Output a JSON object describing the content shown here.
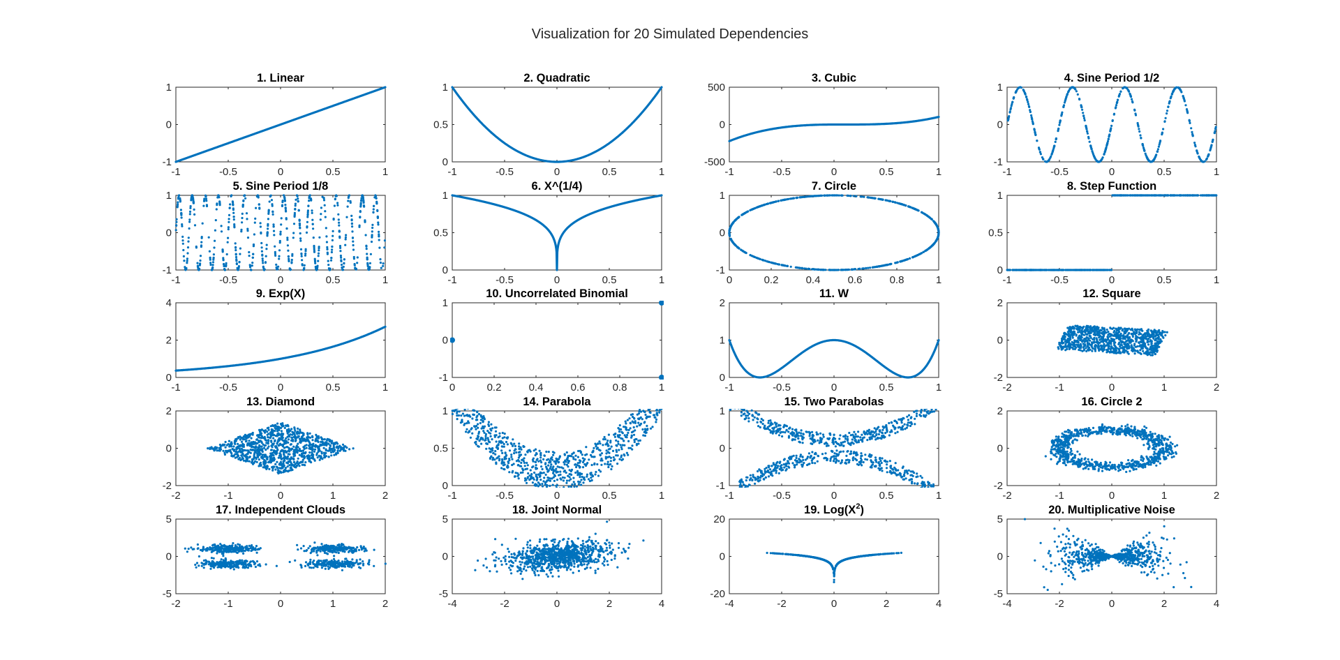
{
  "figure": {
    "title": "Visualization for 20 Simulated Dependencies",
    "series_color": "#0072BD"
  },
  "chart_data": [
    {
      "type": "line",
      "title": "1. Linear",
      "xlim": [
        -1,
        1
      ],
      "ylim": [
        -1,
        1
      ],
      "xticks": [
        -1,
        -0.5,
        0,
        0.5,
        1
      ],
      "yticks": [
        -1,
        0,
        1
      ],
      "xticklabels": [
        "-1",
        "-0.5",
        "0",
        "0.5",
        "1"
      ],
      "yticklabels": [
        "-1",
        "0",
        "1"
      ],
      "function": "y = x"
    },
    {
      "type": "line",
      "title": "2. Quadratic",
      "xlim": [
        -1,
        1
      ],
      "ylim": [
        0,
        1
      ],
      "xticks": [
        -1,
        -0.5,
        0,
        0.5,
        1
      ],
      "yticks": [
        0,
        0.5,
        1
      ],
      "xticklabels": [
        "-1",
        "-0.5",
        "0",
        "0.5",
        "1"
      ],
      "yticklabels": [
        "0",
        "0.5",
        "1"
      ],
      "function": "y = x^2"
    },
    {
      "type": "line",
      "title": "3. Cubic",
      "xlim": [
        -1,
        1
      ],
      "ylim": [
        -500,
        500
      ],
      "xticks": [
        -1,
        -0.5,
        0,
        0.5,
        1
      ],
      "yticks": [
        -500,
        0,
        500
      ],
      "xticklabels": [
        "-1",
        "-0.5",
        "0",
        "0.5",
        "1"
      ],
      "yticklabels": [
        "-500",
        "0",
        "500"
      ],
      "function": "cubic, y(-1) ≈ -200, y(1) ≈ 50"
    },
    {
      "type": "scatter",
      "title": "4. Sine Period 1/2",
      "xlim": [
        -1,
        1
      ],
      "ylim": [
        -1,
        1
      ],
      "xticks": [
        -1,
        -0.5,
        0,
        0.5,
        1
      ],
      "yticks": [
        -1,
        0,
        1
      ],
      "xticklabels": [
        "-1",
        "-0.5",
        "0",
        "0.5",
        "1"
      ],
      "yticklabels": [
        "-1",
        "0",
        "1"
      ],
      "function": "y = sin(4πx)"
    },
    {
      "type": "scatter",
      "title": "5. Sine Period 1/8",
      "xlim": [
        -1,
        1
      ],
      "ylim": [
        -1,
        1
      ],
      "xticks": [
        -1,
        -0.5,
        0,
        0.5,
        1
      ],
      "yticks": [
        -1,
        0,
        1
      ],
      "xticklabels": [
        "-1",
        "-0.5",
        "0",
        "0.5",
        "1"
      ],
      "yticklabels": [
        "-1",
        "0",
        "1"
      ],
      "function": "y = sin(16πx)"
    },
    {
      "type": "line",
      "title": "6. X^(1/4)",
      "xlim": [
        -1,
        1
      ],
      "ylim": [
        0,
        1
      ],
      "xticks": [
        -1,
        -0.5,
        0,
        0.5,
        1
      ],
      "yticks": [
        0,
        0.5,
        1
      ],
      "xticklabels": [
        "-1",
        "-0.5",
        "0",
        "0.5",
        "1"
      ],
      "yticklabels": [
        "0",
        "0.5",
        "1"
      ],
      "function": "y = |x|^(1/4)"
    },
    {
      "type": "scatter",
      "title": "7. Circle",
      "xlim": [
        0,
        1
      ],
      "ylim": [
        -1,
        1
      ],
      "xticks": [
        0,
        0.2,
        0.4,
        0.6,
        0.8,
        1
      ],
      "yticks": [
        -1,
        0,
        1
      ],
      "xticklabels": [
        "0",
        "0.2",
        "0.4",
        "0.6",
        "0.8",
        "1"
      ],
      "yticklabels": [
        "-1",
        "0",
        "1"
      ],
      "function": "ellipse centred (0.5, 0), radii 0.5 and 1"
    },
    {
      "type": "scatter",
      "title": "8. Step Function",
      "xlim": [
        -1,
        1
      ],
      "ylim": [
        0,
        1
      ],
      "xticks": [
        -1,
        -0.5,
        0,
        0.5,
        1
      ],
      "yticks": [
        0,
        0.5,
        1
      ],
      "xticklabels": [
        "-1",
        "-0.5",
        "0",
        "0.5",
        "1"
      ],
      "yticklabels": [
        "0",
        "0.5",
        "1"
      ],
      "function": "y = 0 for x < 0, y = 1 for x > 0"
    },
    {
      "type": "line",
      "title": "9. Exp(X)",
      "xlim": [
        -1,
        1
      ],
      "ylim": [
        0,
        4
      ],
      "xticks": [
        -1,
        -0.5,
        0,
        0.5,
        1
      ],
      "yticks": [
        0,
        2,
        4
      ],
      "xticklabels": [
        "-1",
        "-0.5",
        "0",
        "0.5",
        "1"
      ],
      "yticklabels": [
        "0",
        "2",
        "4"
      ],
      "function": "y = e^x"
    },
    {
      "type": "scatter",
      "title": "10. Uncorrelated Binomial",
      "xlim": [
        0,
        1
      ],
      "ylim": [
        -1,
        1
      ],
      "xticks": [
        0,
        0.2,
        0.4,
        0.6,
        0.8,
        1
      ],
      "yticks": [
        -1,
        0,
        1
      ],
      "xticklabels": [
        "0",
        "0.2",
        "0.4",
        "0.6",
        "0.8",
        "1"
      ],
      "yticklabels": [
        "-1",
        "0",
        "1"
      ],
      "points": [
        [
          0,
          0
        ],
        [
          1,
          1
        ],
        [
          1,
          -1
        ]
      ]
    },
    {
      "type": "line",
      "title": "11. W",
      "xlim": [
        -1,
        1
      ],
      "ylim": [
        0,
        2
      ],
      "xticks": [
        -1,
        -0.5,
        0,
        0.5,
        1
      ],
      "yticks": [
        0,
        1,
        2
      ],
      "xticklabels": [
        "-1",
        "-0.5",
        "0",
        "0.5",
        "1"
      ],
      "yticklabels": [
        "0",
        "1",
        "2"
      ],
      "function": "y = 4(x^2 - 0.5)^2"
    },
    {
      "type": "scatter",
      "title": "12. Square",
      "xlim": [
        -2,
        2
      ],
      "ylim": [
        -2,
        2
      ],
      "xticks": [
        -2,
        -1,
        0,
        1,
        2
      ],
      "yticks": [
        -2,
        0,
        2
      ],
      "xticklabels": [
        "-2",
        "-1",
        "0",
        "1",
        "2"
      ],
      "yticklabels": [
        "-2",
        "0",
        "2"
      ],
      "function": "uniform square rotated, approx. x∈[-1.3,1.3], y∈[-1.3,1.3]"
    },
    {
      "type": "scatter",
      "title": "13. Diamond",
      "xlim": [
        -2,
        2
      ],
      "ylim": [
        -2,
        2
      ],
      "xticks": [
        -2,
        -1,
        0,
        1,
        2
      ],
      "yticks": [
        -2,
        0,
        2
      ],
      "xticklabels": [
        "-2",
        "-1",
        "0",
        "1",
        "2"
      ],
      "yticklabels": [
        "-2",
        "0",
        "2"
      ],
      "function": "uniform diamond, |x|/1.4 + |y|/1.4 ≤ 1"
    },
    {
      "type": "scatter",
      "title": "14. Parabola",
      "xlim": [
        -1,
        1
      ],
      "ylim": [
        0,
        1
      ],
      "xticks": [
        -1,
        -0.5,
        0,
        0.5,
        1
      ],
      "yticks": [
        0,
        0.5,
        1
      ],
      "xticklabels": [
        "-1",
        "-0.5",
        "0",
        "0.5",
        "1"
      ],
      "yticklabels": [
        "0",
        "0.5",
        "1"
      ],
      "function": "y = x^2 + uniform noise"
    },
    {
      "type": "scatter",
      "title": "15. Two Parabolas",
      "xlim": [
        -1,
        1
      ],
      "ylim": [
        -1,
        1
      ],
      "xticks": [
        -1,
        -0.5,
        0,
        0.5,
        1
      ],
      "yticks": [
        -1,
        0,
        1
      ],
      "xticklabels": [
        "-1",
        "-0.5",
        "0",
        "0.5",
        "1"
      ],
      "yticklabels": [
        "-1",
        "0",
        "1"
      ],
      "function": "y = ±(x^2 + noise)"
    },
    {
      "type": "scatter",
      "title": "16. Circle 2",
      "xlim": [
        -2,
        2
      ],
      "ylim": [
        -2,
        2
      ],
      "xticks": [
        -2,
        -1,
        0,
        1,
        2
      ],
      "yticks": [
        -2,
        0,
        2
      ],
      "xticklabels": [
        "-2",
        "-1",
        "0",
        "1",
        "2"
      ],
      "yticklabels": [
        "-2",
        "0",
        "2"
      ],
      "function": "noisy circle, radius ≈ 1"
    },
    {
      "type": "scatter",
      "title": "17. Independent Clouds",
      "xlim": [
        -2,
        2
      ],
      "ylim": [
        -5,
        5
      ],
      "xticks": [
        -2,
        -1,
        0,
        1,
        2
      ],
      "yticks": [
        -5,
        0,
        5
      ],
      "xticklabels": [
        "-2",
        "-1",
        "0",
        "1",
        "2"
      ],
      "yticklabels": [
        "-5",
        "0",
        "5"
      ],
      "function": "four clusters at (±1, ±1)"
    },
    {
      "type": "scatter",
      "title": "18. Joint Normal",
      "xlim": [
        -4,
        4
      ],
      "ylim": [
        -5,
        5
      ],
      "xticks": [
        -4,
        -2,
        0,
        2,
        4
      ],
      "yticks": [
        -5,
        0,
        5
      ],
      "xticklabels": [
        "-4",
        "-2",
        "0",
        "2",
        "4"
      ],
      "yticklabels": [
        "-5",
        "0",
        "5"
      ],
      "function": "bivariate normal, weak positive correlation"
    },
    {
      "type": "scatter",
      "title": "19. Log(X",
      "title_sup": "2",
      "title_end": ")",
      "xlim": [
        -4,
        4
      ],
      "ylim": [
        -20,
        20
      ],
      "xticks": [
        -4,
        -2,
        0,
        2,
        4
      ],
      "yticks": [
        -20,
        0,
        20
      ],
      "xticklabels": [
        "-4",
        "-2",
        "0",
        "2",
        "4"
      ],
      "yticklabels": [
        "-20",
        "0",
        "20"
      ],
      "function": "y = log(x^2), x ~ normal"
    },
    {
      "type": "scatter",
      "title": "20. Multiplicative Noise",
      "xlim": [
        -4,
        4
      ],
      "ylim": [
        -5,
        5
      ],
      "xticks": [
        -4,
        -2,
        0,
        2,
        4
      ],
      "yticks": [
        -5,
        0,
        5
      ],
      "xticklabels": [
        "-4",
        "-2",
        "0",
        "2",
        "4"
      ],
      "yticklabels": [
        "-5",
        "0",
        "5"
      ],
      "function": "y = x · z, x,z ~ normal"
    }
  ]
}
